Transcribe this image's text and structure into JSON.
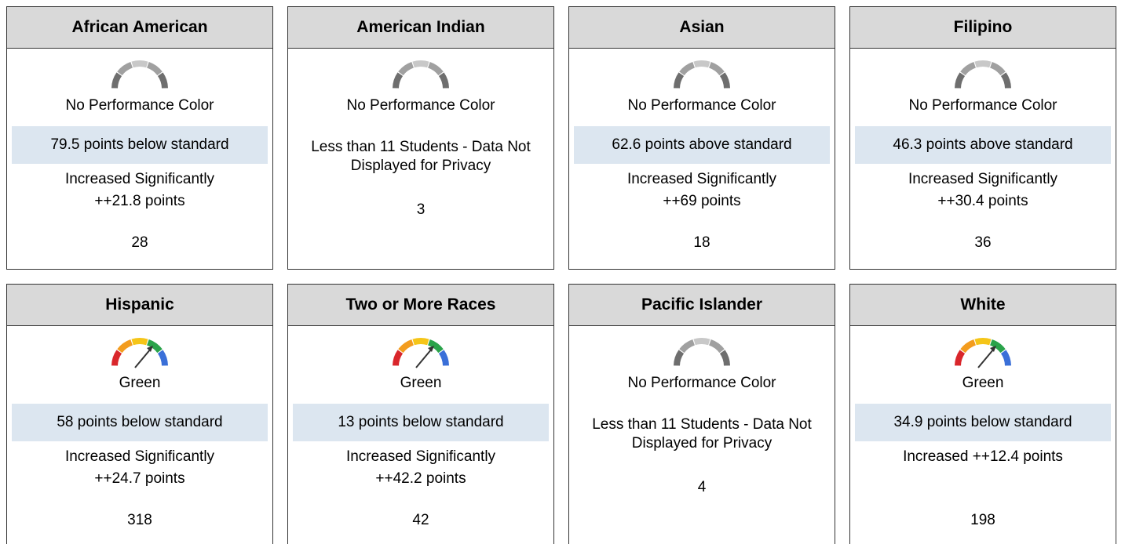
{
  "cards": [
    {
      "title": "African American",
      "gauge": "gray",
      "color_label": "No Performance Color",
      "status": "79.5 points below standard",
      "change": "Increased Significantly ++21.8 points",
      "count": "28"
    },
    {
      "title": "American Indian",
      "gauge": "gray",
      "color_label": "No Performance Color",
      "status": "Less than 11 Students - Data Not Displayed for Privacy",
      "count": "3"
    },
    {
      "title": "Asian",
      "gauge": "gray",
      "color_label": "No Performance Color",
      "status": "62.6 points above standard",
      "change": "Increased Significantly ++69 points",
      "count": "18"
    },
    {
      "title": "Filipino",
      "gauge": "gray",
      "color_label": "No Performance Color",
      "status": "46.3 points above standard",
      "change": "Increased Significantly ++30.4 points",
      "count": "36"
    },
    {
      "title": "Hispanic",
      "gauge": "colored",
      "color_label": "Green",
      "status": "58 points below standard",
      "change": "Increased Significantly ++24.7 points",
      "count": "318"
    },
    {
      "title": "Two or More Races",
      "gauge": "colored",
      "color_label": "Green",
      "status": "13 points below standard",
      "change": "Increased Significantly ++42.2 points",
      "count": "42"
    },
    {
      "title": "Pacific Islander",
      "gauge": "gray",
      "color_label": "No Performance Color",
      "status": "Less than 11 Students - Data Not Displayed for Privacy",
      "count": "4"
    },
    {
      "title": "White",
      "gauge": "colored",
      "color_label": "Green",
      "status": "34.9 points below standard",
      "change": "Increased ++12.4 points",
      "count": "198"
    }
  ]
}
